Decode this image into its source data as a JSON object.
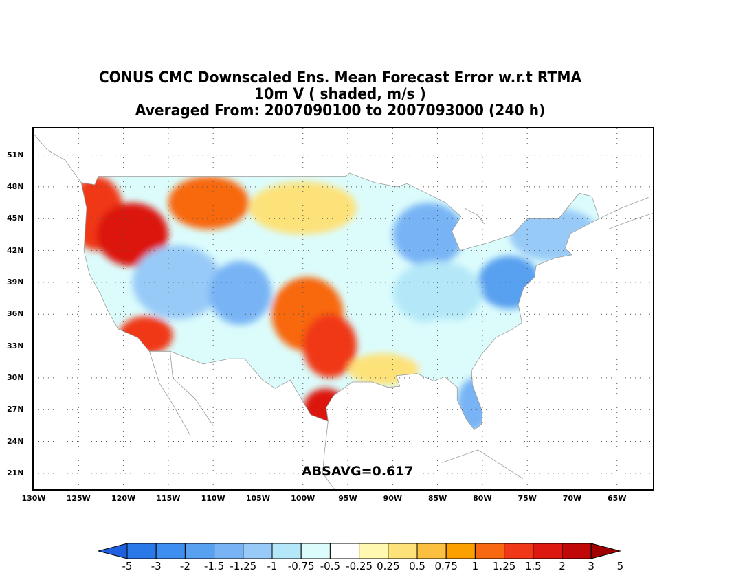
{
  "title": {
    "line1": "CONUS CMC Downscaled Ens. Mean Forecast Error w.r.t RTMA",
    "line2": "10m V ( shaded, m/s )",
    "line3": "Averaged From: 2007090100 to 2007093000 (240 h)"
  },
  "latitude_labels": [
    "51N",
    "48N",
    "45N",
    "42N",
    "39N",
    "36N",
    "33N",
    "30N",
    "27N",
    "24N",
    "21N"
  ],
  "longitude_labels": [
    "130W",
    "125W",
    "120W",
    "115W",
    "110W",
    "105W",
    "100W",
    "95W",
    "90W",
    "85W",
    "80W",
    "75W",
    "70W",
    "65W"
  ],
  "annotation": "ABSAVG=0.617",
  "colorbar": {
    "labels": [
      "-5",
      "-3",
      "-2",
      "-1.5",
      "-1.25",
      "-1",
      "-0.75",
      "-0.5",
      "-0.25",
      "0.25",
      "0.5",
      "0.75",
      "1",
      "1.25",
      "1.5",
      "2",
      "3",
      "5"
    ],
    "colors": [
      "#1f5fe0",
      "#2b78e8",
      "#3d8ef0",
      "#58a0f0",
      "#78b4f5",
      "#98caf8",
      "#b4e8f8",
      "#dcfcfc",
      "#ffffff",
      "#fff8b0",
      "#fde27a",
      "#fcc040",
      "#fca000",
      "#f86810",
      "#f03818",
      "#dc1810",
      "#c00808",
      "#a00000"
    ]
  },
  "map_data": {
    "region": "Contiguous United States",
    "field": "10m V wind mean forecast error",
    "units": "m/s",
    "lon_range": [
      -130,
      -61
    ],
    "lat_range": [
      19.5,
      53.5
    ],
    "grid_lat": [
      21,
      24,
      27,
      30,
      33,
      36,
      39,
      42,
      45,
      48,
      51
    ],
    "grid_lon": [
      -130,
      -125,
      -120,
      -115,
      -110,
      -105,
      -100,
      -95,
      -90,
      -85,
      -80,
      -75,
      -70,
      -65
    ],
    "pattern": [
      {
        "name": "pacific-northwest-warm",
        "value": 1.5
      },
      {
        "name": "oregon-idaho-warm",
        "value": 2
      },
      {
        "name": "montana-warm",
        "value": 1.25
      },
      {
        "name": "northern-plains-warm",
        "value": 0.5
      },
      {
        "name": "great-basin-cool",
        "value": -1
      },
      {
        "name": "colorado-cool",
        "value": -1.25
      },
      {
        "name": "southern-plains-warm",
        "value": 1.25
      },
      {
        "name": "texas-core-warm",
        "value": 1.5
      },
      {
        "name": "south-texas-warm",
        "value": 2
      },
      {
        "name": "socal-warm",
        "value": 1.5
      },
      {
        "name": "great-lakes-cool",
        "value": -1.25
      },
      {
        "name": "northeast-cool",
        "value": -1
      },
      {
        "name": "mid-atlantic-cool",
        "value": -1.5
      },
      {
        "name": "ohio-valley-cool",
        "value": -0.75
      },
      {
        "name": "southeast-mixed",
        "value": -0.5
      },
      {
        "name": "florida-cool",
        "value": -1.25
      },
      {
        "name": "gulf-coast-warm",
        "value": 0.5
      }
    ]
  }
}
